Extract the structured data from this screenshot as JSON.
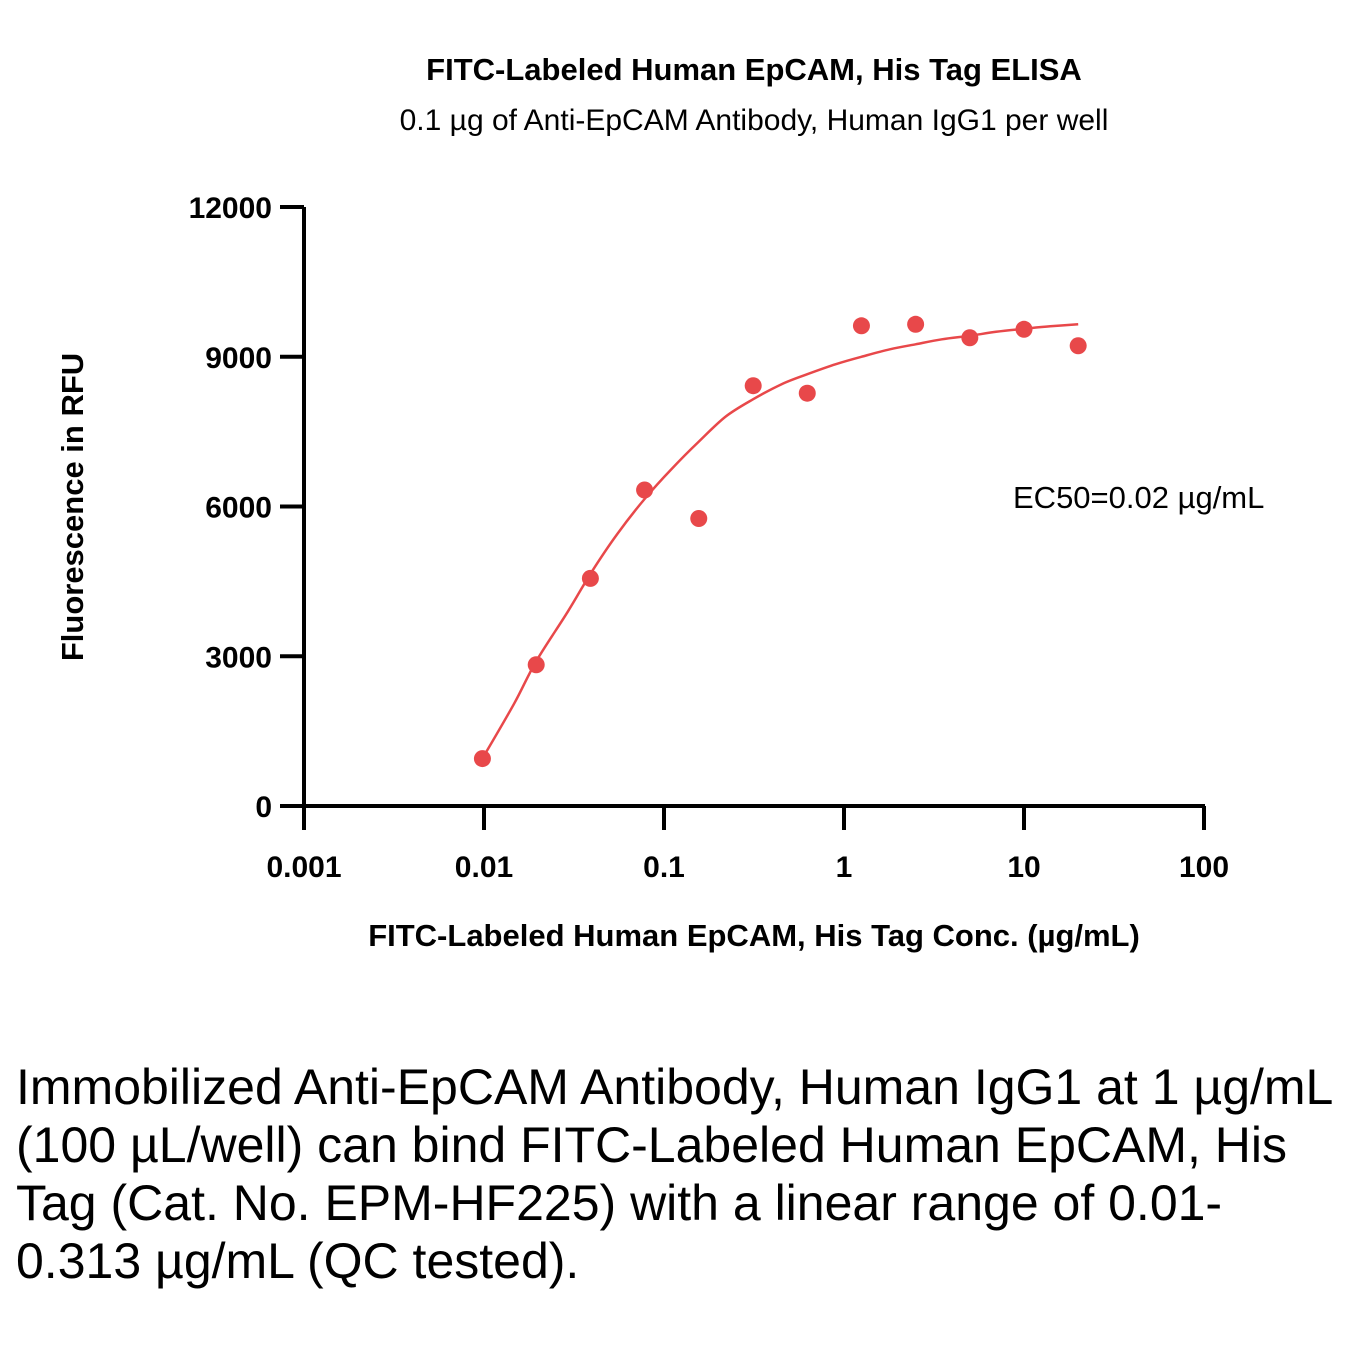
{
  "chart_data": {
    "type": "scatter",
    "title": "FITC-Labeled Human EpCAM, His Tag ELISA",
    "subtitle": "0.1 µg of Anti-EpCAM Antibody, Human IgG1 per well",
    "xlabel": "FITC-Labeled Human EpCAM, His Tag Conc. (µg/mL)",
    "ylabel": "Fluorescence in RFU",
    "xscale": "log",
    "xlim": [
      0.001,
      100
    ],
    "ylim": [
      0,
      12000
    ],
    "xticks": [
      0.001,
      0.01,
      0.1,
      1,
      10,
      100
    ],
    "xtick_labels": [
      "0.001",
      "0.01",
      "0.1",
      "1",
      "10",
      "100"
    ],
    "yticks": [
      0,
      3000,
      6000,
      9000,
      12000
    ],
    "ytick_labels": [
      "0",
      "3000",
      "6000",
      "9000",
      "12000"
    ],
    "grid": false,
    "color": "#e8484a",
    "series": [
      {
        "x": [
          0.0098,
          0.0195,
          0.039,
          0.078,
          0.156,
          0.313,
          0.625,
          1.25,
          2.5,
          5,
          10,
          20
        ],
        "y": [
          950,
          2830,
          4560,
          6330,
          5760,
          8420,
          8270,
          9620,
          9650,
          9380,
          9550,
          9220
        ]
      }
    ],
    "fit_curve": {
      "x": [
        0.0098,
        0.0147,
        0.0195,
        0.0293,
        0.039,
        0.055,
        0.078,
        0.11,
        0.156,
        0.22,
        0.313,
        0.45,
        0.625,
        0.9,
        1.25,
        1.8,
        2.5,
        3.5,
        5,
        7,
        10,
        14,
        20
      ],
      "y": [
        950,
        2050,
        2900,
        3900,
        4650,
        5450,
        6150,
        6750,
        7300,
        7800,
        8150,
        8450,
        8650,
        8850,
        9000,
        9150,
        9250,
        9350,
        9420,
        9500,
        9560,
        9610,
        9650
      ]
    },
    "annotations": [
      {
        "text": "EC50=0.02 µg/mL"
      }
    ]
  },
  "caption": "Immobilized Anti-EpCAM Antibody, Human IgG1 at 1 µg/mL (100 µL/well) can bind FITC-Labeled Human EpCAM, His Tag (Cat. No. EPM-HF225) with a linear range of 0.01-0.313 µg/mL (QC tested)."
}
